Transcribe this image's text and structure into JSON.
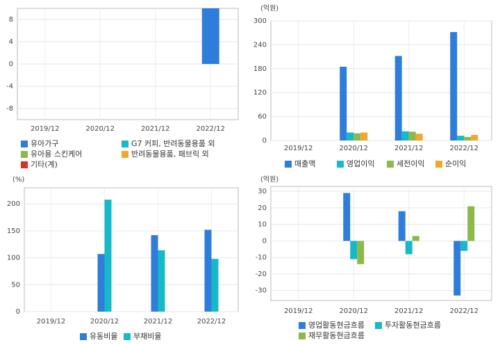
{
  "chart_data": [
    {
      "type": "bar",
      "categories": [
        "2019/12",
        "2020/12",
        "2021/12",
        "2022/12"
      ],
      "ylim": [
        -10,
        10
      ],
      "yticks": [
        8,
        4,
        0,
        -4,
        -8
      ],
      "grid": true,
      "series": [
        {
          "name": "유아가구",
          "color": "#2f7ddb",
          "values": [
            null,
            null,
            null,
            10
          ]
        },
        {
          "name": "G7 커피, 반려동물용품 외",
          "color": "#17b8c8",
          "values": [
            null,
            null,
            null,
            null
          ]
        },
        {
          "name": "유아용 스킨케어",
          "color": "#8db84a",
          "values": [
            null,
            null,
            null,
            null
          ]
        },
        {
          "name": "반려동물용품, 패브릭 외",
          "color": "#f0a830",
          "values": [
            null,
            null,
            null,
            null
          ]
        },
        {
          "name": "기타(계)",
          "color": "#d8302a",
          "values": [
            null,
            null,
            null,
            null
          ]
        }
      ]
    },
    {
      "type": "bar",
      "unit": "(억원)",
      "categories": [
        "2019/12",
        "2020/12",
        "2021/12",
        "2022/12"
      ],
      "ylim": [
        0,
        300
      ],
      "yticks": [
        0,
        60,
        120,
        180,
        240,
        300
      ],
      "grid": true,
      "series": [
        {
          "name": "매출액",
          "color": "#2f7ddb",
          "values": [
            null,
            185,
            212,
            272
          ]
        },
        {
          "name": "영업이익",
          "color": "#17b8c8",
          "values": [
            null,
            20,
            23,
            12
          ]
        },
        {
          "name": "세전이익",
          "color": "#8db84a",
          "values": [
            null,
            18,
            22,
            9
          ]
        },
        {
          "name": "순이익",
          "color": "#f0a830",
          "values": [
            null,
            20,
            17,
            14
          ]
        }
      ]
    },
    {
      "type": "bar",
      "unit": "(%)",
      "categories": [
        "2019/12",
        "2020/12",
        "2021/12",
        "2022/12"
      ],
      "ylim": [
        0,
        230
      ],
      "yticks": [
        0,
        50,
        100,
        150,
        200
      ],
      "grid": true,
      "series": [
        {
          "name": "유동비율",
          "color": "#2f7ddb",
          "values": [
            null,
            107,
            142,
            152
          ]
        },
        {
          "name": "부채비율",
          "color": "#17b8c8",
          "values": [
            null,
            208,
            114,
            98
          ]
        }
      ]
    },
    {
      "type": "bar",
      "unit": "(억원)",
      "categories": [
        "2019/12",
        "2020/12",
        "2021/12",
        "2022/12"
      ],
      "ylim": [
        -36,
        33
      ],
      "yticks": [
        30,
        20,
        10,
        0,
        -10,
        -20,
        -30
      ],
      "grid": true,
      "series": [
        {
          "name": "영업활동현금흐름",
          "color": "#2f7ddb",
          "values": [
            null,
            29,
            18,
            -33
          ]
        },
        {
          "name": "투자활동현금흐름",
          "color": "#17b8c8",
          "values": [
            null,
            -11,
            -8,
            -6
          ]
        },
        {
          "name": "재무활동현금흐름",
          "color": "#8db84a",
          "values": [
            null,
            -14,
            3,
            21
          ]
        }
      ]
    }
  ]
}
